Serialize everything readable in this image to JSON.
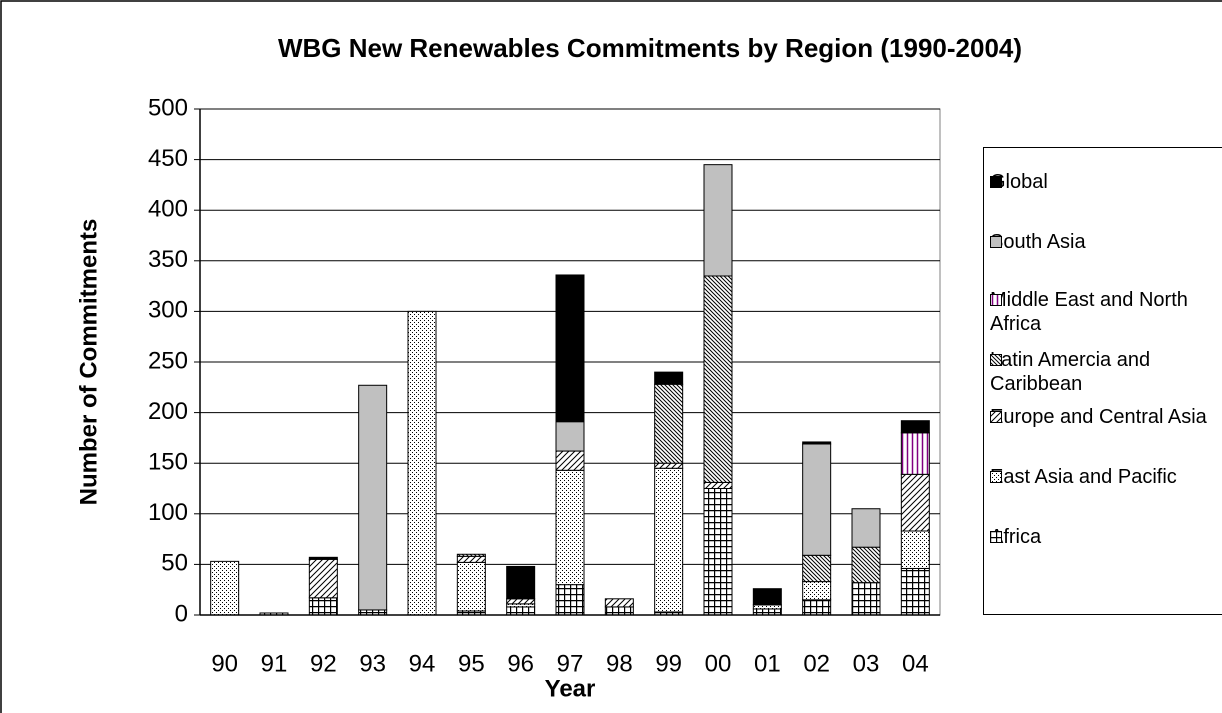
{
  "chart_data": {
    "type": "stacked_bar",
    "title": "WBG New Renewables Commitments by Region (1990-2004)",
    "x_label": "Year",
    "y_label": "Number of Commitments",
    "categories": [
      "90",
      "91",
      "92",
      "93",
      "94",
      "95",
      "96",
      "97",
      "98",
      "99",
      "00",
      "01",
      "02",
      "03",
      "04"
    ],
    "series": [
      {
        "name": "Africa",
        "color": "#ffffff",
        "values": [
          0,
          2,
          17,
          5,
          0,
          4,
          8,
          30,
          8,
          3,
          125,
          6,
          15,
          32,
          46
        ]
      },
      {
        "name": "East Asia and Pacific",
        "color": "#ffffff",
        "values": [
          53,
          0,
          0,
          0,
          300,
          48,
          3,
          113,
          0,
          142,
          0,
          4,
          18,
          0,
          37
        ]
      },
      {
        "name": "Europe and Central Asia",
        "color": "#ffffff",
        "values": [
          0,
          0,
          38,
          0,
          0,
          6,
          5,
          19,
          8,
          5,
          6,
          0,
          0,
          0,
          56
        ]
      },
      {
        "name": "Latin Amercia and Caribbean",
        "color": "#ffffff",
        "values": [
          0,
          0,
          0,
          0,
          0,
          2,
          0,
          0,
          0,
          78,
          204,
          0,
          26,
          35,
          0
        ]
      },
      {
        "name": "Middle East and North Africa",
        "color": "#800080",
        "values": [
          0,
          0,
          0,
          0,
          0,
          0,
          0,
          0,
          0,
          0,
          0,
          0,
          0,
          0,
          41
        ]
      },
      {
        "name": "South Asia",
        "color": "#c0c0c0",
        "values": [
          0,
          0,
          0,
          222,
          0,
          0,
          0,
          29,
          0,
          0,
          110,
          0,
          110,
          38,
          0
        ]
      },
      {
        "name": "Global",
        "color": "#000000",
        "values": [
          0,
          0,
          2,
          0,
          0,
          0,
          32,
          145,
          0,
          12,
          0,
          16,
          2,
          0,
          12
        ]
      }
    ],
    "ylim": [
      0,
      500
    ],
    "yticks": [
      0,
      50,
      100,
      150,
      200,
      250,
      300,
      350,
      400,
      450,
      500
    ],
    "grid": true,
    "legend": "right"
  }
}
